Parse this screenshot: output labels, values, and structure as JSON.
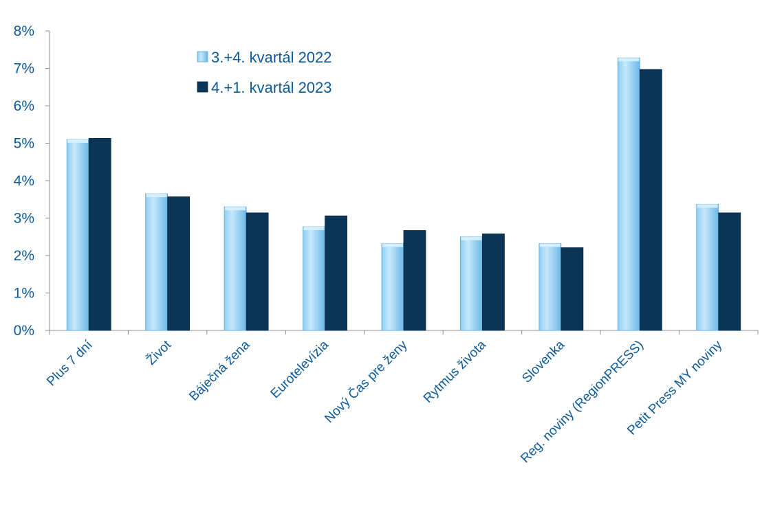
{
  "chart_data": {
    "type": "bar",
    "categories": [
      "Plus 7 dní",
      "Život",
      "Báječná žena",
      "Eurotelevízia",
      "Nový Čas pre ženy",
      "Rytmus života",
      "Slovenka",
      "Reg. noviny (RegionPRESS)",
      "Petit Press MY noviny"
    ],
    "series": [
      {
        "name": "3.+4. kvartál 2022",
        "values": [
          5.1,
          3.65,
          3.3,
          2.77,
          2.32,
          2.5,
          2.32,
          7.28,
          3.37
        ],
        "color": "#9bd3f5"
      },
      {
        "name": "4.+1. kvartál 2023",
        "values": [
          5.13,
          3.57,
          3.14,
          3.06,
          2.67,
          2.58,
          2.21,
          6.97,
          3.14
        ],
        "color": "#0a3557"
      }
    ],
    "ylim": [
      0,
      8
    ],
    "yticks": [
      "0%",
      "1%",
      "2%",
      "3%",
      "4%",
      "5%",
      "6%",
      "7%",
      "8%"
    ],
    "grid": false,
    "legend_position": "top-center",
    "text_color": "#0d5a9a"
  }
}
